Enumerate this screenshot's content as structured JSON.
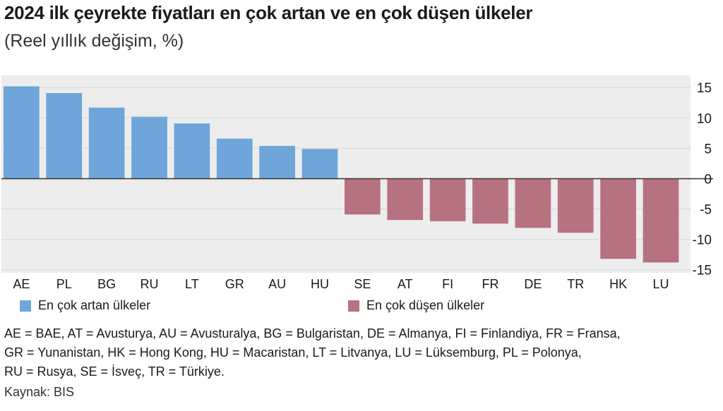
{
  "colors": {
    "rising": "#6fa6d9",
    "falling": "#b77280",
    "panel": "#ededed",
    "grid": "#d8d8d8",
    "zero_line": "#333333",
    "text": "#1a1a1a"
  },
  "chart_data": {
    "type": "bar",
    "title": "2024 ilk çeyrekte fiyatları en çok artan ve en çok düşen ülkeler",
    "subtitle": "(Reel yıllık değişim, %)",
    "xlabel": "",
    "ylabel": "",
    "ylim": [
      -15.5,
      17
    ],
    "yticks": [
      15,
      10,
      5,
      0,
      -5,
      -10,
      -15
    ],
    "categories": [
      "AE",
      "PL",
      "BG",
      "RU",
      "LT",
      "GR",
      "AU",
      "HU",
      "SE",
      "AT",
      "FI",
      "FR",
      "DE",
      "TR",
      "HK",
      "LU"
    ],
    "values": [
      15.2,
      14.1,
      11.7,
      10.2,
      9.1,
      6.6,
      5.4,
      4.9,
      -5.9,
      -6.8,
      -7.0,
      -7.4,
      -8.1,
      -8.9,
      -13.2,
      -13.8
    ],
    "series": [
      {
        "name": "En çok artan ülkeler",
        "color_key": "rising",
        "categories": [
          "AE",
          "PL",
          "BG",
          "RU",
          "LT",
          "GR",
          "AU",
          "HU"
        ]
      },
      {
        "name": "En çok düşen ülkeler",
        "color_key": "falling",
        "categories": [
          "SE",
          "AT",
          "FI",
          "FR",
          "DE",
          "TR",
          "HK",
          "LU"
        ]
      }
    ],
    "legend_position": "bottom"
  },
  "legend": {
    "rising_label": "En çok artan ülkeler",
    "falling_label": "En çok düşen ülkeler"
  },
  "notes": {
    "line1": "AE = BAE, AT = Avusturya, AU = Avusturalya, BG = Bulgaristan, DE = Almanya, FI = Finlandiya, FR = Fransa,",
    "line2": "GR = Yunanistan, HK = Hong Kong, HU = Macaristan, LT = Litvanya, LU = Lüksemburg, PL = Polonya,",
    "line3": "RU = Rusya, SE = İsveç,  TR = Türkiye.",
    "source": "Kaynak: BIS"
  }
}
